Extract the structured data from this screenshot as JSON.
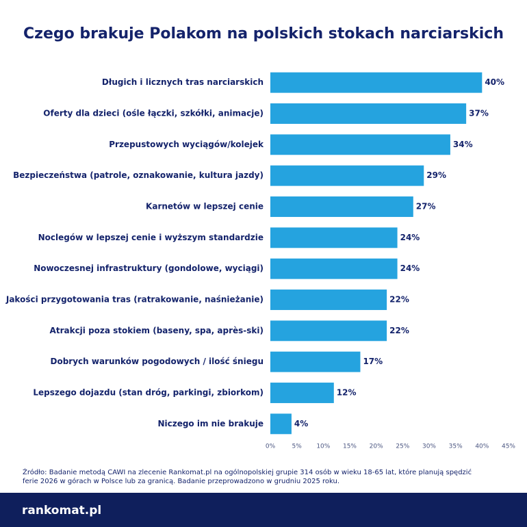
{
  "chart_data": {
    "type": "barh",
    "title": "Czego brakuje Polakom na polskich stokach narciarskich",
    "categories": [
      "Długich i licznych tras narciarskich",
      "Oferty dla dzieci (ośle łączki, szkółki, animacje)",
      "Przepustowych wyciągów/kolejek",
      "Bezpieczeństwa (patrole, oznakowanie, kultura jazdy)",
      "Karnetów w lepszej cenie",
      "Noclegów w lepszej cenie i wyższym standardzie",
      "Nowoczesnej infrastruktury (gondolowe, wyciągi)",
      "Jakości przygotowania tras (ratrakowanie, naśnieżanie)",
      "Atrakcji poza stokiem (baseny, spa, après-ski)",
      "Dobrych warunków pogodowych / ilość śniegu",
      "Lepszego dojazdu (stan dróg, parkingi, zbiorkom)",
      "Niczego im nie brakuje"
    ],
    "values": [
      40,
      37,
      34,
      29,
      27,
      24,
      24,
      22,
      22,
      17,
      12,
      4
    ],
    "value_labels": [
      "40%",
      "37%",
      "34%",
      "29%",
      "27%",
      "24%",
      "24%",
      "22%",
      "22%",
      "17%",
      "12%",
      "4%"
    ],
    "color": "#25a3df",
    "xlim": [
      0,
      45
    ],
    "xticks": [
      {
        "value": 0,
        "label": "0%"
      },
      {
        "value": 5,
        "label": "5%"
      },
      {
        "value": 10,
        "label": "10%"
      },
      {
        "value": 15,
        "label": "15%"
      },
      {
        "value": 20,
        "label": "20%"
      },
      {
        "value": 25,
        "label": "25%"
      },
      {
        "value": 30,
        "label": "30%"
      },
      {
        "value": 35,
        "label": "35%"
      },
      {
        "value": 40,
        "label": "40%"
      },
      {
        "value": 45,
        "label": "45%"
      }
    ],
    "grid": false,
    "source": [
      "Źródło: Badanie metodą CAWI na zlecenie Rankomat.pl na ogólnopolskiej grupie 314 osób w wieku 18-65 lat, które planują spędzić",
      "ferie 2026 w górach w Polsce lub za granicą. Badanie przeprowadzono w grudniu 2025 roku."
    ],
    "logo": "rankomat.pl"
  }
}
